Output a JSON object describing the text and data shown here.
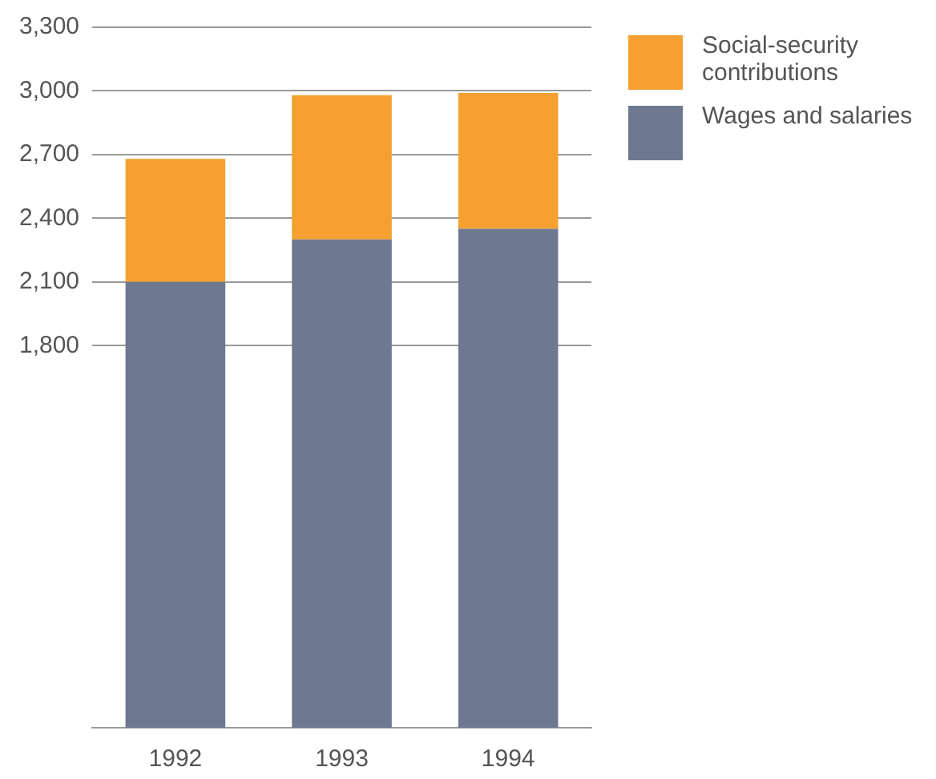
{
  "chart_data": {
    "type": "bar",
    "stacked": true,
    "categories": [
      "1992",
      "1993",
      "1994"
    ],
    "series": [
      {
        "name": "Wages and salaries",
        "color": "#6e7890",
        "values": [
          2100,
          2300,
          2350
        ]
      },
      {
        "name": "Social-security contributions",
        "color": "#f5a030",
        "values": [
          580,
          680,
          640
        ]
      }
    ],
    "ylim": [
      0,
      3300
    ],
    "yticks": [
      {
        "value": 1800,
        "label": "1,800"
      },
      {
        "value": 2100,
        "label": "2,100"
      },
      {
        "value": 2400,
        "label": "2,400"
      },
      {
        "value": 2700,
        "label": "2,700"
      },
      {
        "value": 3000,
        "label": "3,000"
      },
      {
        "value": 3300,
        "label": "3,300"
      }
    ],
    "grid": "y",
    "legend": "top right"
  }
}
